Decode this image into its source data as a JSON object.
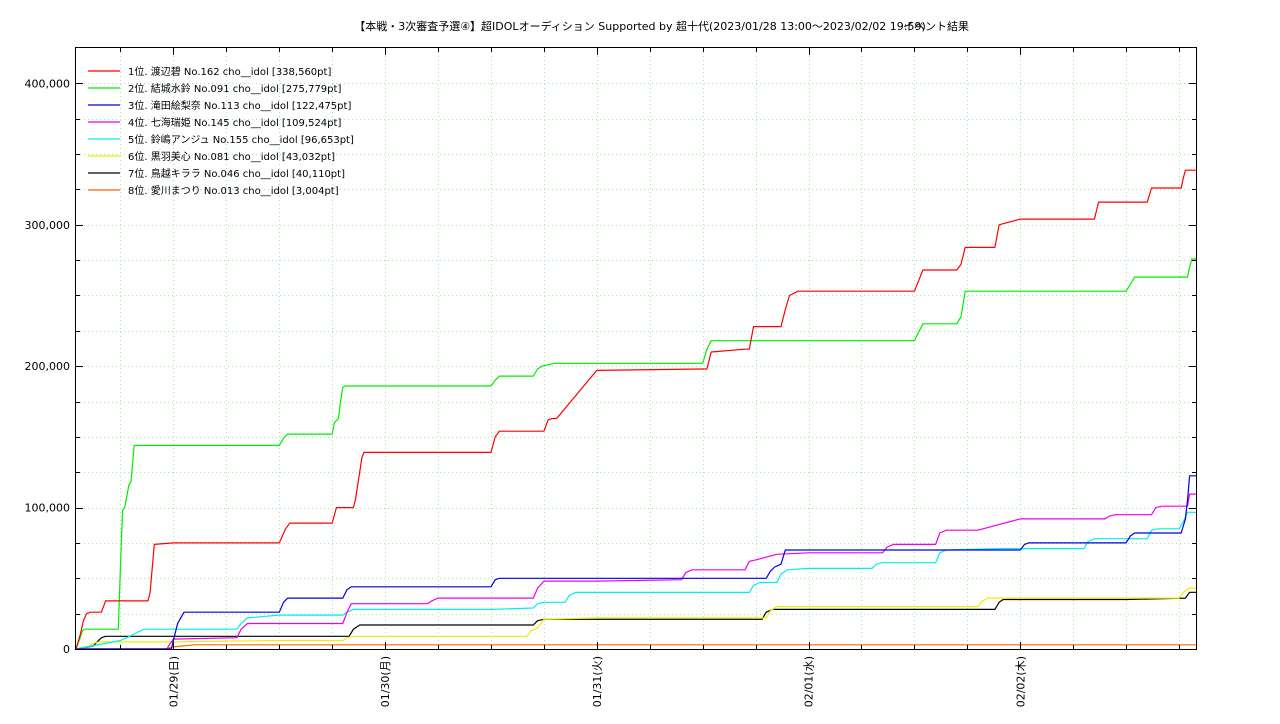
{
  "chart_data": {
    "type": "line",
    "title": "【本戦・3次審査予選④】超IDOLオーディション Supported by 超十代(2023/01/28 13:00～2023/02/02 19:59)",
    "subtitle": "イベント結果",
    "xlabel": "",
    "ylabel": "",
    "x_unit": "days since 2023/01/28 00:00",
    "xlim": [
      0.54,
      5.83
    ],
    "ylim": [
      0,
      425000
    ],
    "y_ticks": [
      0,
      100000,
      200000,
      300000,
      400000
    ],
    "y_tick_labels": [
      "0",
      "100,000",
      "200,000",
      "300,000",
      "400,000"
    ],
    "x_ticks": [
      1,
      2,
      3,
      4,
      5
    ],
    "x_tick_labels": [
      "01/29(日)",
      "01/30(月)",
      "01/31(火)",
      "02/01(水)",
      "02/02(木)"
    ],
    "grid": true,
    "legend_position": "top-left",
    "series": [
      {
        "name": "1位. 渡辺碧 No.162 cho__idol [338,560pt]",
        "color": "#ff0000",
        "x": [
          0.54,
          0.56,
          0.575,
          0.59,
          0.61,
          0.66,
          0.68,
          0.88,
          0.89,
          0.91,
          1.0,
          1.5,
          1.53,
          1.55,
          1.75,
          1.77,
          1.85,
          1.86,
          1.88,
          1.89,
          1.9,
          2.0,
          2.5,
          2.52,
          2.54,
          2.75,
          2.77,
          2.79,
          2.81,
          3.0,
          3.5,
          3.52,
          3.54,
          3.7,
          3.72,
          3.74,
          3.87,
          3.89,
          3.91,
          3.95,
          4.0,
          4.5,
          4.54,
          4.7,
          4.72,
          4.74,
          4.88,
          4.9,
          5.0,
          5.35,
          5.37,
          5.6,
          5.62,
          5.76,
          5.77,
          5.78,
          5.83
        ],
        "y": [
          0,
          10000,
          20000,
          25000,
          26000,
          26000,
          34000,
          34000,
          40000,
          74000,
          75000,
          75000,
          85000,
          89000,
          89000,
          100000,
          100000,
          106000,
          125000,
          135000,
          139000,
          139000,
          139000,
          150000,
          154000,
          154000,
          162000,
          163000,
          163000,
          197000,
          198000,
          198000,
          210000,
          212000,
          212000,
          228000,
          228000,
          240000,
          250000,
          253000,
          253000,
          253000,
          268000,
          268000,
          272000,
          284000,
          284000,
          300000,
          304000,
          304000,
          316000,
          316000,
          326000,
          326000,
          333000,
          338560,
          338560
        ]
      },
      {
        "name": "2位. 結城水鈴 No.091 cho__idol [275,779pt]",
        "color": "#00ee00",
        "x": [
          0.54,
          0.56,
          0.57,
          0.58,
          0.59,
          0.74,
          0.75,
          0.76,
          0.77,
          0.79,
          0.8,
          0.815,
          1.0,
          1.5,
          1.52,
          1.54,
          1.6,
          1.75,
          1.76,
          1.78,
          1.79,
          1.8,
          1.81,
          2.0,
          2.5,
          2.52,
          2.54,
          2.7,
          2.72,
          2.74,
          2.8,
          3.0,
          3.5,
          3.52,
          3.54,
          4.0,
          4.5,
          4.52,
          4.54,
          4.7,
          4.72,
          4.74,
          5.0,
          5.5,
          5.52,
          5.54,
          5.79,
          5.8,
          5.81,
          5.83
        ],
        "y": [
          0,
          8000,
          13000,
          14000,
          14000,
          14000,
          60000,
          98000,
          100000,
          116000,
          118000,
          144000,
          144000,
          144000,
          149000,
          152000,
          152000,
          152000,
          160000,
          163000,
          176000,
          185000,
          186000,
          186000,
          186000,
          190000,
          193000,
          193000,
          198000,
          200000,
          202000,
          202000,
          202000,
          212000,
          218000,
          218000,
          218000,
          224000,
          230000,
          230000,
          235000,
          253000,
          253000,
          253000,
          258000,
          263000,
          263000,
          270000,
          275779,
          275779
        ]
      },
      {
        "name": "3位. 滝田絵梨奈 No.113 cho__idol [122,475pt]",
        "color": "#0000dd",
        "x": [
          0.54,
          0.98,
          0.99,
          1.0,
          1.02,
          1.05,
          1.5,
          1.52,
          1.54,
          1.8,
          1.82,
          1.84,
          2.5,
          2.52,
          2.54,
          3.0,
          3.5,
          3.8,
          3.82,
          3.84,
          3.87,
          3.89,
          4.0,
          4.5,
          4.55,
          4.9,
          5.0,
          5.02,
          5.04,
          5.5,
          5.52,
          5.54,
          5.76,
          5.78,
          5.79,
          5.8,
          5.83
        ],
        "y": [
          0,
          0,
          0,
          6000,
          18000,
          26000,
          26000,
          33000,
          36000,
          36000,
          42000,
          44000,
          44000,
          49000,
          50000,
          50000,
          50000,
          50000,
          55000,
          58000,
          60000,
          70000,
          70000,
          70000,
          70000,
          70000,
          70000,
          74000,
          75000,
          75000,
          80000,
          82000,
          82000,
          92000,
          105000,
          122475,
          122475
        ]
      },
      {
        "name": "4位. 七海瑞姫 No.145 cho__idol [109,524pt]",
        "color": "#ee00ee",
        "x": [
          0.54,
          0.97,
          0.98,
          1.0,
          1.3,
          1.32,
          1.35,
          1.8,
          1.82,
          1.84,
          2.2,
          2.22,
          2.25,
          2.7,
          2.72,
          2.75,
          3.0,
          3.4,
          3.42,
          3.45,
          3.7,
          3.72,
          3.75,
          3.85,
          4.0,
          4.35,
          4.37,
          4.4,
          4.6,
          4.62,
          4.65,
          4.8,
          5.0,
          5.4,
          5.42,
          5.45,
          5.5,
          5.62,
          5.64,
          5.67,
          5.79,
          5.8,
          5.83
        ],
        "y": [
          0,
          0,
          3000,
          7000,
          8000,
          14000,
          18000,
          18000,
          26000,
          32000,
          32000,
          34000,
          36000,
          36000,
          43000,
          48000,
          48000,
          49000,
          54000,
          56000,
          56000,
          62000,
          63000,
          67000,
          68000,
          68000,
          72000,
          74000,
          74000,
          82000,
          84000,
          84000,
          92000,
          92000,
          94000,
          95000,
          95000,
          95000,
          100000,
          101000,
          101000,
          109524,
          109524
        ]
      },
      {
        "name": "5位. 鈴嶋アンジュ No.155 cho__idol [96,653pt]",
        "color": "#00eeee",
        "x": [
          0.54,
          0.75,
          0.78,
          0.82,
          0.86,
          1.0,
          1.3,
          1.32,
          1.35,
          1.5,
          1.8,
          1.82,
          1.85,
          2.2,
          2.5,
          2.7,
          2.72,
          2.75,
          2.85,
          2.87,
          2.9,
          3.0,
          3.5,
          3.72,
          3.74,
          3.77,
          3.85,
          3.87,
          3.9,
          4.0,
          4.3,
          4.32,
          4.35,
          4.6,
          4.62,
          4.65,
          4.9,
          5.0,
          5.3,
          5.32,
          5.35,
          5.6,
          5.62,
          5.65,
          5.75,
          5.77,
          5.79,
          5.83
        ],
        "y": [
          0,
          6000,
          8000,
          11000,
          14000,
          14000,
          14000,
          18000,
          22000,
          24000,
          24000,
          26000,
          28000,
          28000,
          28000,
          29000,
          32000,
          33000,
          33000,
          38000,
          40000,
          40000,
          40000,
          40000,
          45000,
          47000,
          47000,
          53000,
          56000,
          57000,
          57000,
          60000,
          61000,
          61000,
          68000,
          70000,
          71000,
          71000,
          71000,
          76000,
          78000,
          78000,
          84000,
          85000,
          85000,
          90000,
          96653,
          96653
        ]
      },
      {
        "name": "6位. 黒羽美心 No.081 cho__idol [43,032pt]",
        "color": "#eeee00",
        "x": [
          0.54,
          0.6,
          0.62,
          0.65,
          1.0,
          1.5,
          1.8,
          1.82,
          1.85,
          2.0,
          2.5,
          2.67,
          2.69,
          2.72,
          2.75,
          3.0,
          3.5,
          3.8,
          3.82,
          3.85,
          4.0,
          4.5,
          4.8,
          4.82,
          4.85,
          5.0,
          5.5,
          5.75,
          5.77,
          5.8,
          5.83
        ],
        "y": [
          0,
          2000,
          4000,
          5000,
          5000,
          6000,
          6000,
          8000,
          9000,
          9000,
          9000,
          9000,
          13000,
          15000,
          21000,
          22000,
          22000,
          22000,
          27000,
          30000,
          30000,
          30000,
          30000,
          34000,
          36000,
          36000,
          36000,
          36000,
          40000,
          43032,
          43032
        ]
      },
      {
        "name": "7位. 鳥越キララ No.046 cho__idol [40,110pt]",
        "color": "#000000",
        "x": [
          0.54,
          0.62,
          0.64,
          0.66,
          0.68,
          1.0,
          1.5,
          1.83,
          1.85,
          1.88,
          2.5,
          2.7,
          2.72,
          2.75,
          3.5,
          3.78,
          3.8,
          3.83,
          4.5,
          4.88,
          4.9,
          4.92,
          5.5,
          5.78,
          5.8,
          5.83
        ],
        "y": [
          0,
          2000,
          5000,
          8000,
          9000,
          9000,
          9000,
          9000,
          14000,
          17000,
          17000,
          17000,
          20000,
          21000,
          21000,
          21000,
          26000,
          28000,
          28000,
          28000,
          33000,
          35000,
          35000,
          36000,
          40110,
          40110
        ]
      },
      {
        "name": "8位. 愛川まつり No.013 cho__idol [3,004pt]",
        "color": "#ff6600",
        "x": [
          0.54,
          0.96,
          1.0,
          1.1,
          5.83
        ],
        "y": [
          0,
          0,
          1500,
          3004,
          3004
        ]
      }
    ]
  }
}
